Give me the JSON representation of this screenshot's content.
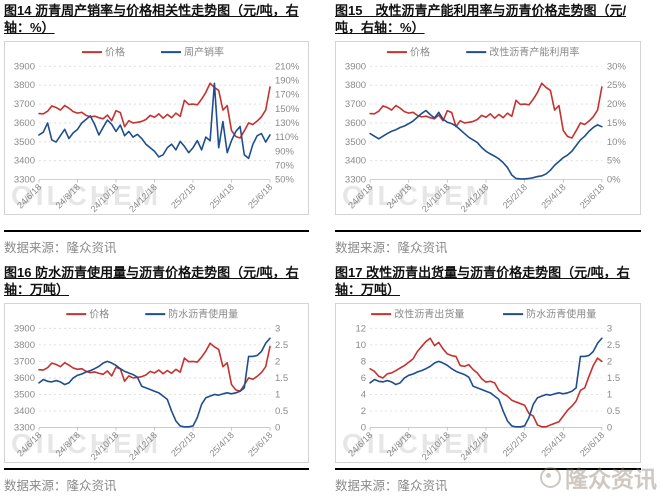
{
  "page": {
    "watermark_oilchem": "OILCHEM",
    "watermark_longzhong": "隆众资讯"
  },
  "chart_data": [
    {
      "id": "fig14",
      "type": "line",
      "title": "图14 沥青周产销率与价格相关性走势图（元/吨，右轴：%）",
      "source": "数据来源：隆众资讯",
      "legend_position": "top",
      "grid": true,
      "x_ticks": [
        "24/6/18",
        "24/8/18",
        "24/10/18",
        "24/12/18",
        "25/2/18",
        "25/4/18",
        "25/6/18"
      ],
      "left_axis": {
        "min": 3300,
        "max": 3900,
        "ticks": [
          "3900",
          "3800",
          "3700",
          "3600",
          "3500",
          "3400",
          "3300"
        ]
      },
      "right_axis": {
        "min": 50,
        "max": 210,
        "ticks": [
          "210%",
          "190%",
          "170%",
          "150%",
          "130%",
          "110%",
          "90%",
          "70%",
          "50%"
        ]
      },
      "series": [
        {
          "name": "价格",
          "axis": "left",
          "color": "#c53230",
          "values": [
            3650,
            3648,
            3662,
            3690,
            3682,
            3668,
            3692,
            3678,
            3660,
            3652,
            3656,
            3640,
            3632,
            3636,
            3628,
            3622,
            3642,
            3612,
            3665,
            3655,
            3580,
            3612,
            3600,
            3603,
            3608,
            3618,
            3640,
            3630,
            3648,
            3625,
            3645,
            3628,
            3652,
            3635,
            3720,
            3698,
            3700,
            3696,
            3726,
            3762,
            3810,
            3788,
            3772,
            3668,
            3692,
            3560,
            3528,
            3520,
            3558,
            3600,
            3592,
            3610,
            3632,
            3668,
            3790
          ]
        },
        {
          "name": "周产销率",
          "axis": "right",
          "color": "#1f4e8f",
          "values": [
            113,
            117,
            130,
            106,
            103,
            112,
            121,
            108,
            116,
            121,
            130,
            135,
            140,
            128,
            113,
            124,
            134,
            128,
            118,
            127,
            112,
            118,
            110,
            114,
            108,
            100,
            95,
            90,
            82,
            85,
            95,
            100,
            92,
            104,
            97,
            88,
            95,
            105,
            92,
            110,
            105,
            186,
            95,
            132,
            88,
            105,
            118,
            125,
            85,
            80,
            100,
            112,
            115,
            103,
            113
          ]
        }
      ]
    },
    {
      "id": "fig15",
      "type": "line",
      "title": "图15　改性沥青产能利用率与沥青价格走势图（元/吨，右轴：%）",
      "source": "数据来源：隆众资讯",
      "legend_position": "top",
      "grid": true,
      "x_ticks": [
        "24/6/18",
        "24/8/18",
        "24/10/18",
        "24/12/18",
        "25/2/18",
        "25/4/18",
        "25/6/18"
      ],
      "left_axis": {
        "min": 3300,
        "max": 3900,
        "ticks": [
          "3900",
          "3800",
          "3700",
          "3600",
          "3500",
          "3400",
          "3300"
        ]
      },
      "right_axis": {
        "min": 0,
        "max": 30,
        "ticks": [
          "30%",
          "25%",
          "20%",
          "15%",
          "10%",
          "5%",
          "0%"
        ]
      },
      "series": [
        {
          "name": "价格",
          "axis": "left",
          "color": "#c53230",
          "values": [
            3650,
            3648,
            3662,
            3690,
            3682,
            3668,
            3692,
            3678,
            3660,
            3652,
            3656,
            3640,
            3632,
            3636,
            3628,
            3622,
            3642,
            3612,
            3665,
            3655,
            3580,
            3612,
            3600,
            3603,
            3608,
            3618,
            3640,
            3630,
            3648,
            3625,
            3645,
            3628,
            3652,
            3635,
            3720,
            3698,
            3700,
            3696,
            3726,
            3762,
            3810,
            3788,
            3772,
            3668,
            3692,
            3560,
            3528,
            3520,
            3558,
            3600,
            3592,
            3610,
            3632,
            3668,
            3790
          ]
        },
        {
          "name": "改性沥青产能利用率",
          "axis": "right",
          "color": "#1f4e8f",
          "values": [
            12.2,
            11.5,
            10.8,
            11.5,
            12.2,
            12.8,
            13.2,
            13.8,
            14.2,
            14.8,
            15.5,
            16.5,
            17.5,
            18.3,
            17.2,
            16.3,
            17.8,
            16.0,
            15.2,
            14.8,
            14.2,
            13.2,
            12.2,
            11.2,
            10.5,
            9.8,
            8.5,
            7.5,
            6.8,
            6.2,
            5.5,
            4.5,
            3.2,
            1.2,
            0.3,
            0.2,
            0.2,
            0.3,
            0.5,
            0.8,
            1.0,
            1.5,
            2.5,
            3.8,
            4.8,
            5.8,
            6.5,
            7.5,
            9.0,
            10.5,
            11.5,
            12.8,
            13.8,
            14.5,
            14.0
          ]
        }
      ]
    },
    {
      "id": "fig16",
      "type": "line",
      "title": "图16 防水沥青使用量与沥青价格走势图（元/吨，右轴：万吨）",
      "source": "数据来源：隆众资讯",
      "legend_position": "top",
      "grid": true,
      "x_ticks": [
        "24/6/18",
        "24/8/18",
        "24/10/18",
        "24/12/18",
        "25/2/18",
        "25/4/18",
        "25/6/18"
      ],
      "left_axis": {
        "min": 3300,
        "max": 3900,
        "ticks": [
          "3900",
          "3800",
          "3700",
          "3600",
          "3500",
          "3400",
          "3300"
        ]
      },
      "right_axis": {
        "min": 0,
        "max": 3,
        "ticks": [
          "3",
          "2.5",
          "2",
          "1.5",
          "1",
          "0.5",
          "0"
        ]
      },
      "series": [
        {
          "name": "价格",
          "axis": "left",
          "color": "#c53230",
          "values": [
            3650,
            3648,
            3662,
            3690,
            3682,
            3668,
            3692,
            3678,
            3660,
            3652,
            3656,
            3640,
            3632,
            3636,
            3628,
            3622,
            3642,
            3612,
            3665,
            3655,
            3580,
            3612,
            3600,
            3603,
            3608,
            3618,
            3640,
            3630,
            3648,
            3625,
            3645,
            3628,
            3652,
            3635,
            3720,
            3698,
            3700,
            3696,
            3726,
            3762,
            3810,
            3788,
            3772,
            3668,
            3692,
            3560,
            3528,
            3520,
            3558,
            3600,
            3592,
            3610,
            3632,
            3668,
            3790
          ]
        },
        {
          "name": "防水沥青使用量",
          "axis": "right",
          "color": "#1f4e8f",
          "values": [
            1.35,
            1.45,
            1.4,
            1.38,
            1.42,
            1.38,
            1.3,
            1.35,
            1.5,
            1.58,
            1.62,
            1.68,
            1.72,
            1.78,
            1.85,
            1.95,
            2.0,
            1.95,
            1.88,
            1.78,
            1.7,
            1.65,
            1.6,
            1.52,
            1.25,
            1.2,
            1.15,
            1.1,
            1.05,
            0.95,
            0.85,
            0.5,
            0.2,
            0.05,
            0.02,
            0.02,
            0.05,
            0.3,
            0.7,
            0.9,
            0.95,
            1.0,
            0.98,
            1.02,
            1.05,
            1.02,
            1.05,
            1.1,
            1.2,
            2.15,
            2.15,
            2.18,
            2.3,
            2.55,
            2.7
          ]
        }
      ]
    },
    {
      "id": "fig17",
      "type": "line",
      "title": "图17 改性沥青出货量与沥青价格走势图（元/吨，右轴：万吨）",
      "source": "数据来源：隆众资讯",
      "legend_position": "top",
      "grid": true,
      "x_ticks": [
        "24/6/18",
        "24/8/18",
        "24/10/18",
        "24/12/18",
        "25/2/18",
        "25/4/18",
        "25/6/18"
      ],
      "left_axis": {
        "min": 0,
        "max": 12,
        "ticks": [
          "12",
          "10",
          "8",
          "6",
          "4",
          "2",
          "0"
        ]
      },
      "right_axis": {
        "min": 0,
        "max": 3,
        "ticks": [
          "3",
          "2.5",
          "2",
          "1.5",
          "1",
          "0.5",
          "0"
        ]
      },
      "series": [
        {
          "name": "改性沥青出货量",
          "axis": "left",
          "color": "#c53230",
          "values": [
            7.1,
            6.8,
            6.2,
            6.0,
            6.5,
            6.6,
            6.9,
            7.2,
            7.5,
            7.9,
            8.3,
            9.2,
            9.8,
            10.4,
            10.8,
            9.9,
            10.3,
            9.5,
            8.9,
            8.7,
            8.6,
            7.5,
            7.4,
            7.6,
            7.0,
            6.6,
            5.9,
            5.5,
            5.6,
            5.4,
            4.5,
            4.1,
            3.8,
            3.3,
            3.1,
            2.9,
            2.7,
            1.7,
            1.4,
            0.3,
            0.1,
            0.1,
            0.3,
            0.5,
            0.7,
            1.4,
            2.1,
            2.6,
            3.2,
            4.5,
            4.8,
            6.2,
            7.5,
            8.4,
            8.0
          ]
        },
        {
          "name": "防水沥青使用量",
          "axis": "right",
          "color": "#1f4e8f",
          "values": [
            1.35,
            1.45,
            1.4,
            1.38,
            1.42,
            1.38,
            1.3,
            1.35,
            1.5,
            1.58,
            1.62,
            1.68,
            1.72,
            1.78,
            1.85,
            1.95,
            2.0,
            1.95,
            1.88,
            1.78,
            1.7,
            1.65,
            1.6,
            1.52,
            1.25,
            1.2,
            1.15,
            1.1,
            1.05,
            0.95,
            0.85,
            0.5,
            0.2,
            0.05,
            0.02,
            0.02,
            0.05,
            0.3,
            0.7,
            0.9,
            0.95,
            1.0,
            0.98,
            1.02,
            1.05,
            1.02,
            1.05,
            1.1,
            1.2,
            2.15,
            2.15,
            2.18,
            2.3,
            2.55,
            2.7
          ]
        }
      ]
    }
  ]
}
